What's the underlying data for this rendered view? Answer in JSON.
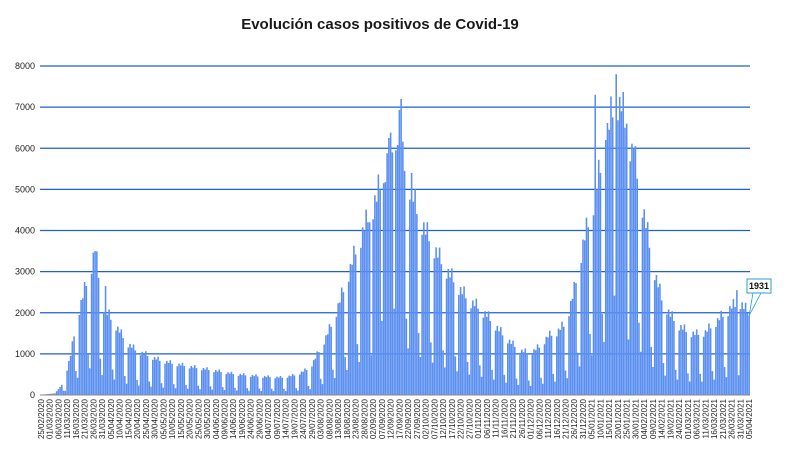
{
  "chart_data": {
    "type": "bar",
    "title": "Evolución casos positivos de Covid-19",
    "xlabel": "",
    "ylabel": "",
    "ylim": [
      0,
      8000
    ],
    "y_ticks": [
      0,
      1000,
      2000,
      3000,
      4000,
      5000,
      6000,
      7000,
      8000
    ],
    "grid": "horizontal",
    "bar_color": "#5b8ff0",
    "grid_color": "#1f5fd6",
    "start_date": "25/02/2020",
    "end_date": "05/04/2021",
    "x_tick_labels": [
      "25/02/2020",
      "01/03/2020",
      "06/03/2020",
      "11/03/2020",
      "16/03/2020",
      "21/03/2020",
      "26/03/2020",
      "31/03/2020",
      "05/04/2020",
      "10/04/2020",
      "15/04/2020",
      "20/04/2020",
      "25/04/2020",
      "30/04/2020",
      "05/05/2020",
      "10/05/2020",
      "15/05/2020",
      "20/05/2020",
      "25/05/2020",
      "30/05/2020",
      "04/06/2020",
      "09/06/2020",
      "14/06/2020",
      "19/06/2020",
      "24/06/2020",
      "29/06/2020",
      "04/07/2020",
      "09/07/2020",
      "14/07/2020",
      "19/07/2020",
      "24/07/2020",
      "29/07/2020",
      "03/08/2020",
      "08/08/2020",
      "13/08/2020",
      "18/08/2020",
      "23/08/2020",
      "28/08/2020",
      "02/09/2020",
      "07/09/2020",
      "12/09/2020",
      "17/09/2020",
      "22/09/2020",
      "27/09/2020",
      "02/10/2020",
      "07/10/2020",
      "12/10/2020",
      "17/10/2020",
      "22/10/2020",
      "27/10/2020",
      "01/11/2020",
      "06/11/2020",
      "11/11/2020",
      "16/11/2020",
      "21/11/2020",
      "26/11/2020",
      "01/12/2020",
      "06/12/2020",
      "11/12/2020",
      "16/12/2020",
      "21/12/2020",
      "26/12/2020",
      "31/12/2020",
      "05/01/2021",
      "10/01/2021",
      "15/01/2021",
      "20/01/2021",
      "25/01/2021",
      "30/01/2021",
      "04/02/2021",
      "09/02/2021",
      "14/02/2021",
      "19/02/2021",
      "24/02/2021",
      "01/03/2021",
      "06/03/2021",
      "11/03/2021",
      "16/03/2021",
      "21/03/2021",
      "26/03/2021",
      "31/03/2021",
      "05/04/2021"
    ],
    "annotations": [
      {
        "label": "1931",
        "date": "05/04/2021",
        "value": 1931
      }
    ],
    "envelope": [
      [
        "25/02/2020",
        5
      ],
      [
        "04/03/2020",
        40
      ],
      [
        "09/03/2020",
        300
      ],
      [
        "13/03/2020",
        950
      ],
      [
        "17/03/2020",
        1900
      ],
      [
        "21/03/2020",
        2500
      ],
      [
        "25/03/2020",
        3100
      ],
      [
        "27/03/2020",
        3500
      ],
      [
        "31/03/2020",
        2200
      ],
      [
        "03/04/2020",
        1950
      ],
      [
        "08/04/2020",
        1650
      ],
      [
        "14/04/2020",
        1250
      ],
      [
        "20/04/2020",
        1050
      ],
      [
        "26/04/2020",
        950
      ],
      [
        "03/05/2020",
        830
      ],
      [
        "10/05/2020",
        760
      ],
      [
        "20/05/2020",
        680
      ],
      [
        "01/06/2020",
        600
      ],
      [
        "15/06/2020",
        500
      ],
      [
        "01/07/2020",
        440
      ],
      [
        "12/07/2020",
        420
      ],
      [
        "20/07/2020",
        480
      ],
      [
        "28/07/2020",
        650
      ],
      [
        "04/08/2020",
        1200
      ],
      [
        "10/08/2020",
        1750
      ],
      [
        "16/08/2020",
        2500
      ],
      [
        "22/08/2020",
        3300
      ],
      [
        "28/08/2020",
        4000
      ],
      [
        "02/09/2020",
        4500
      ],
      [
        "06/09/2020",
        5000
      ],
      [
        "10/09/2020",
        5600
      ],
      [
        "14/09/2020",
        6000
      ],
      [
        "17/09/2020",
        6600
      ],
      [
        "19/09/2020",
        5600
      ],
      [
        "23/09/2020",
        5000
      ],
      [
        "27/09/2020",
        4400
      ],
      [
        "02/10/2020",
        3900
      ],
      [
        "07/10/2020",
        3500
      ],
      [
        "12/10/2020",
        3100
      ],
      [
        "17/10/2020",
        2800
      ],
      [
        "22/10/2020",
        2500
      ],
      [
        "27/10/2020",
        2250
      ],
      [
        "01/11/2020",
        2100
      ],
      [
        "06/11/2020",
        1900
      ],
      [
        "11/11/2020",
        1650
      ],
      [
        "16/11/2020",
        1400
      ],
      [
        "21/11/2020",
        1200
      ],
      [
        "26/11/2020",
        1050
      ],
      [
        "01/12/2020",
        1000
      ],
      [
        "06/12/2020",
        1150
      ],
      [
        "11/12/2020",
        1400
      ],
      [
        "16/12/2020",
        1500
      ],
      [
        "21/12/2020",
        1700
      ],
      [
        "26/12/2020",
        2500
      ],
      [
        "31/12/2020",
        3600
      ],
      [
        "05/01/2021",
        4400
      ],
      [
        "10/01/2021",
        5400
      ],
      [
        "14/01/2021",
        6300
      ],
      [
        "18/01/2021",
        6900
      ],
      [
        "21/01/2021",
        7100
      ],
      [
        "25/01/2021",
        6300
      ],
      [
        "30/01/2021",
        5500
      ],
      [
        "04/02/2021",
        4300
      ],
      [
        "09/02/2021",
        3100
      ],
      [
        "14/02/2021",
        2300
      ],
      [
        "19/02/2021",
        1900
      ],
      [
        "24/02/2021",
        1650
      ],
      [
        "01/03/2021",
        1500
      ],
      [
        "06/03/2021",
        1450
      ],
      [
        "11/03/2021",
        1500
      ],
      [
        "16/03/2021",
        1700
      ],
      [
        "21/03/2021",
        1900
      ],
      [
        "26/03/2021",
        2100
      ],
      [
        "31/03/2021",
        2200
      ],
      [
        "05/04/2021",
        1931
      ]
    ],
    "peaks": [
      [
        "27/03/2020",
        3500
      ],
      [
        "02/04/2020",
        2650
      ],
      [
        "31/08/2020",
        4200
      ],
      [
        "04/09/2020",
        4700
      ],
      [
        "08/09/2020",
        5150
      ],
      [
        "11/09/2020",
        6250
      ],
      [
        "15/09/2020",
        5950
      ],
      [
        "18/09/2020",
        7200
      ],
      [
        "24/09/2020",
        5400
      ],
      [
        "07/01/2021",
        7300
      ],
      [
        "13/01/2021",
        6200
      ],
      [
        "19/01/2021",
        7800
      ],
      [
        "21/01/2021",
        7250
      ],
      [
        "25/01/2021",
        6600
      ],
      [
        "29/01/2021",
        6000
      ],
      [
        "29/03/2021",
        2550
      ]
    ]
  }
}
